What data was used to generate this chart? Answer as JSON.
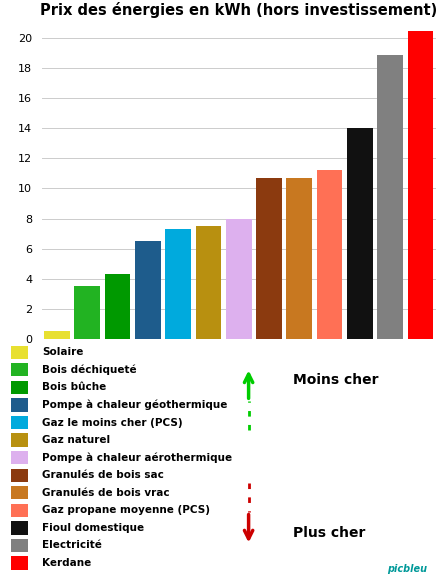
{
  "title": "Prix des énergies en kWh (hors investissement)",
  "categories": [
    "Solaire",
    "Bois déchiqueté",
    "Bois bûche",
    "Pompe à chaleur géothermique",
    "Gaz le moins cher (PCS)",
    "Gaz naturel",
    "Pompe à chaleur aérothermique",
    "Granulés de bois sac",
    "Granulés de bois vrac",
    "Gaz propane moyenne (PCS)",
    "Fioul domestique",
    "Electricité",
    "Kerdane"
  ],
  "values": [
    0.5,
    3.5,
    4.3,
    6.5,
    7.3,
    7.5,
    8.0,
    10.7,
    10.7,
    11.2,
    14.0,
    18.9,
    20.5
  ],
  "colors": [
    "#e8e030",
    "#22b322",
    "#009900",
    "#1e5c8c",
    "#00aadd",
    "#b89010",
    "#ddb0ee",
    "#8b3a0f",
    "#c87820",
    "#ff7055",
    "#111111",
    "#808080",
    "#ff0000"
  ],
  "ylim": [
    0,
    21
  ],
  "yticks": [
    0,
    2,
    4,
    6,
    8,
    10,
    12,
    14,
    16,
    18,
    20
  ],
  "bg_color": "#ffffff",
  "grid_color": "#cccccc",
  "legend_items": [
    {
      "label": "Solaire",
      "color": "#e8e030"
    },
    {
      "label": "Bois déchiqueté",
      "color": "#22b322"
    },
    {
      "label": "Bois bûche",
      "color": "#009900"
    },
    {
      "label": "Pompe à chaleur géothermique",
      "color": "#1e5c8c"
    },
    {
      "label": "Gaz le moins cher (PCS)",
      "color": "#00aadd"
    },
    {
      "label": "Gaz naturel",
      "color": "#b89010"
    },
    {
      "label": "Pompe à chaleur aérothermique",
      "color": "#ddb0ee"
    },
    {
      "label": "Granulés de bois sac",
      "color": "#8b3a0f"
    },
    {
      "label": "Granulés de bois vrac",
      "color": "#c87820"
    },
    {
      "label": "Gaz propane moyenne (PCS)",
      "color": "#ff7055"
    },
    {
      "label": "Fioul domestique",
      "color": "#111111"
    },
    {
      "label": "Electricité",
      "color": "#808080"
    },
    {
      "label": "Kerdane",
      "color": "#ff0000"
    }
  ],
  "moins_cher_text": "Moins cher",
  "plus_cher_text": "Plus cher",
  "moins_cher_color": "#00cc00",
  "plus_cher_color": "#cc0000",
  "bar_width": 0.85
}
